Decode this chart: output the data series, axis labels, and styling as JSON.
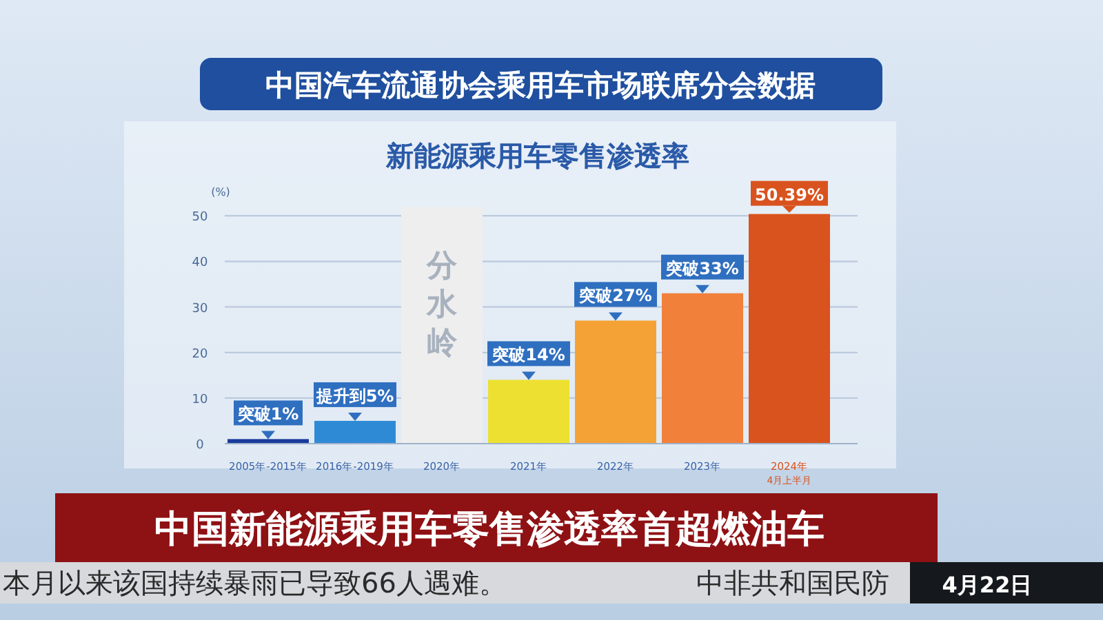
{
  "chart_data": {
    "type": "bar",
    "title": "新能源乘用车零售渗透率",
    "subtitle": "中国汽车流通协会乘用车市场联席分会数据",
    "ylabel": "(%)",
    "categories": [
      "2005年-2015年",
      "2016年-2019年",
      "2020年",
      "2021年",
      "2022年",
      "2023年",
      "2024年$_{4月上半月}$"
    ],
    "values": [
      1,
      5,
      null,
      14,
      27,
      33,
      50.39
    ],
    "colors": [
      "#1a3a9c",
      "#2f8ad6",
      null,
      "#ede031",
      "#f4a236",
      "#f1803a",
      "#d9531e"
    ],
    "value_labels": [
      "突破1%",
      "提升到5%",
      null,
      "突破14%",
      "突破27%",
      "突破33%",
      "50.39%"
    ],
    "ylim": [
      0,
      52
    ],
    "yticks": [
      0,
      10,
      20,
      30,
      40,
      50
    ],
    "grid": "y",
    "bands": [
      {
        "axis": "x",
        "from": "2020年",
        "to": "2020年",
        "label": "分水岭",
        "color": "#eeeeee"
      }
    ],
    "annotations": [
      "中国新能源乘用车零售渗透率首超燃油车",
      "本月以来该国持续暴雨已导致66人遇难。",
      "中非共和国民防",
      "4月22日"
    ]
  }
}
